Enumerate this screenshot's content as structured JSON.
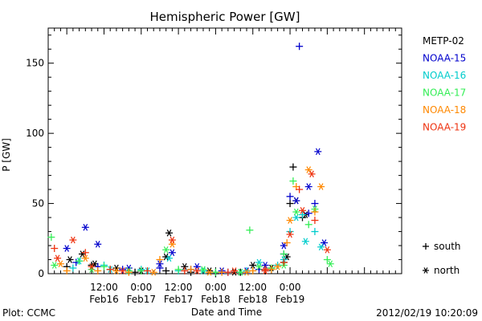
{
  "chart_data": {
    "type": "scatter",
    "title": "Hemispheric Power [GW]",
    "xlabel": "Date and Time",
    "ylabel": "P [GW]",
    "ylim": [
      0,
      175
    ],
    "yticks": [
      0,
      50,
      100,
      150
    ],
    "xlim": [
      -6,
      108
    ],
    "xticks": [
      {
        "h": 12,
        "top": "12:00",
        "bottom": "Feb16"
      },
      {
        "h": 24,
        "top": "0:00",
        "bottom": "Feb17"
      },
      {
        "h": 36,
        "top": "12:00",
        "bottom": "Feb17"
      },
      {
        "h": 48,
        "top": "0:00",
        "bottom": "Feb18"
      },
      {
        "h": 60,
        "top": "12:00",
        "bottom": "Feb18"
      },
      {
        "h": 72,
        "top": "0:00",
        "bottom": "Feb19"
      }
    ],
    "legend": {
      "placement": "right"
    },
    "series": [
      {
        "name": "METP-02",
        "color": "#000000",
        "south": [
          [
            0,
            5
          ],
          [
            8,
            6
          ],
          [
            14,
            3
          ],
          [
            22,
            1
          ],
          [
            32,
            2
          ],
          [
            40,
            1
          ],
          [
            48,
            0
          ],
          [
            56,
            1
          ],
          [
            64,
            2
          ],
          [
            70,
            8
          ],
          [
            72,
            50
          ],
          [
            73,
            76
          ],
          [
            76,
            40
          ]
        ],
        "north": [
          [
            1,
            10
          ],
          [
            5,
            14
          ],
          [
            9,
            7
          ],
          [
            16,
            4
          ],
          [
            24,
            2
          ],
          [
            32,
            12
          ],
          [
            33,
            29
          ],
          [
            38,
            5
          ],
          [
            46,
            2
          ],
          [
            54,
            1
          ],
          [
            60,
            6
          ],
          [
            66,
            4
          ],
          [
            71,
            12
          ],
          [
            74,
            52
          ],
          [
            77,
            42
          ]
        ]
      },
      {
        "name": "NOAA-15",
        "color": "#0000cc",
        "south": [
          [
            3,
            8
          ],
          [
            10,
            5
          ],
          [
            18,
            3
          ],
          [
            30,
            4
          ],
          [
            40,
            3
          ],
          [
            52,
            1
          ],
          [
            62,
            3
          ],
          [
            70,
            14
          ],
          [
            72,
            55
          ],
          [
            75,
            162
          ],
          [
            78,
            43
          ],
          [
            80,
            50
          ]
        ],
        "north": [
          [
            0,
            18
          ],
          [
            6,
            33
          ],
          [
            10,
            21
          ],
          [
            20,
            4
          ],
          [
            30,
            7
          ],
          [
            34,
            15
          ],
          [
            42,
            5
          ],
          [
            50,
            2
          ],
          [
            58,
            2
          ],
          [
            64,
            6
          ],
          [
            70,
            20
          ],
          [
            74,
            52
          ],
          [
            78,
            62
          ],
          [
            81,
            87
          ],
          [
            83,
            22
          ]
        ]
      },
      {
        "name": "NOAA-16",
        "color": "#00cccc",
        "south": [
          [
            2,
            4
          ],
          [
            12,
            6
          ],
          [
            24,
            3
          ],
          [
            36,
            2
          ],
          [
            48,
            1
          ],
          [
            58,
            2
          ],
          [
            68,
            6
          ],
          [
            72,
            30
          ],
          [
            76,
            42
          ],
          [
            80,
            30
          ]
        ],
        "north": [
          [
            4,
            9
          ],
          [
            14,
            3
          ],
          [
            26,
            2
          ],
          [
            33,
            11
          ],
          [
            44,
            2
          ],
          [
            56,
            1
          ],
          [
            62,
            8
          ],
          [
            70,
            10
          ],
          [
            74,
            40
          ],
          [
            77,
            23
          ],
          [
            82,
            19
          ]
        ]
      },
      {
        "name": "NOAA-17",
        "color": "#33ee55",
        "south": [
          [
            -5,
            26
          ],
          [
            4,
            9
          ],
          [
            12,
            5
          ],
          [
            24,
            2
          ],
          [
            36,
            3
          ],
          [
            48,
            1
          ],
          [
            59,
            31
          ],
          [
            66,
            4
          ],
          [
            70,
            14
          ],
          [
            73,
            66
          ],
          [
            78,
            35
          ],
          [
            84,
            10
          ]
        ],
        "north": [
          [
            -4,
            6
          ],
          [
            8,
            3
          ],
          [
            20,
            2
          ],
          [
            32,
            17
          ],
          [
            44,
            3
          ],
          [
            56,
            1
          ],
          [
            62,
            5
          ],
          [
            70,
            6
          ],
          [
            74,
            44
          ],
          [
            80,
            46
          ],
          [
            85,
            7
          ]
        ]
      },
      {
        "name": "NOAA-18",
        "color": "#ff8800",
        "south": [
          [
            0,
            2
          ],
          [
            10,
            2
          ],
          [
            20,
            1
          ],
          [
            30,
            10
          ],
          [
            40,
            3
          ],
          [
            50,
            1
          ],
          [
            60,
            2
          ],
          [
            66,
            3
          ],
          [
            71,
            22
          ],
          [
            74,
            62
          ],
          [
            80,
            44
          ]
        ],
        "north": [
          [
            -2,
            7
          ],
          [
            6,
            11
          ],
          [
            16,
            2
          ],
          [
            28,
            1
          ],
          [
            34,
            21
          ],
          [
            46,
            1
          ],
          [
            58,
            1
          ],
          [
            68,
            5
          ],
          [
            72,
            38
          ],
          [
            78,
            74
          ],
          [
            82,
            62
          ]
        ]
      },
      {
        "name": "NOAA-19",
        "color": "#ee3311",
        "south": [
          [
            -4,
            18
          ],
          [
            6,
            15
          ],
          [
            14,
            3
          ],
          [
            26,
            2
          ],
          [
            38,
            2
          ],
          [
            52,
            1
          ],
          [
            64,
            3
          ],
          [
            70,
            8
          ],
          [
            75,
            60
          ],
          [
            80,
            38
          ]
        ],
        "north": [
          [
            -3,
            11
          ],
          [
            2,
            24
          ],
          [
            8,
            5
          ],
          [
            18,
            2
          ],
          [
            34,
            24
          ],
          [
            42,
            2
          ],
          [
            54,
            2
          ],
          [
            64,
            2
          ],
          [
            72,
            28
          ],
          [
            76,
            45
          ],
          [
            79,
            71
          ],
          [
            84,
            17
          ]
        ]
      }
    ],
    "markers": [
      {
        "symbol": "+",
        "label": "south"
      },
      {
        "symbol": "*",
        "label": "north"
      }
    ]
  },
  "footer": {
    "left": "Plot: CCMC",
    "right": "2012/02/19 10:20:09"
  }
}
